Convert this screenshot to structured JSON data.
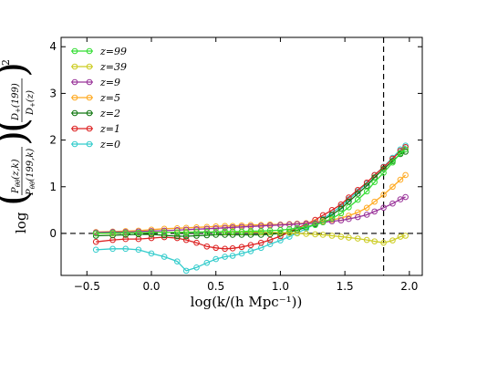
{
  "chart_data": {
    "type": "line",
    "xlabel": "log(k/(h Mpc⁻¹))",
    "ylabel_main": "log",
    "ylabel_frac1_num": "P",
    "ylabel_frac1_num_sub": "θθ",
    "ylabel_frac1_num_args": "(z,k)",
    "ylabel_frac1_den": "P",
    "ylabel_frac1_den_sub": "θθ",
    "ylabel_frac1_den_args": "(199,k)",
    "ylabel_frac2_num": "D",
    "ylabel_frac2_num_sub": "+",
    "ylabel_frac2_num_args": "(199)",
    "ylabel_frac2_den": "D",
    "ylabel_frac2_den_sub": "+",
    "ylabel_frac2_den_args": "(z)",
    "ylabel_exponent": "2",
    "xlim": [
      -0.7,
      2.1
    ],
    "ylim": [
      -0.9,
      4.2
    ],
    "xticks": [
      -0.5,
      0.0,
      0.5,
      1.0,
      1.5,
      2.0
    ],
    "xtick_labels": [
      "−0.5",
      "0.0",
      "0.5",
      "1.0",
      "1.5",
      "2.0"
    ],
    "yticks": [
      0,
      1,
      2,
      3,
      4
    ],
    "ytick_labels": [
      "0",
      "1",
      "2",
      "3",
      "4"
    ],
    "reference_lines": {
      "horizontal_y": 0,
      "vertical_x": 1.8
    },
    "legend_position": "upper-left",
    "x": [
      -0.43,
      -0.3,
      -0.2,
      -0.1,
      0.0,
      0.1,
      0.2,
      0.27,
      0.35,
      0.43,
      0.5,
      0.57,
      0.63,
      0.7,
      0.77,
      0.85,
      0.92,
      1.0,
      1.07,
      1.13,
      1.2,
      1.27,
      1.33,
      1.4,
      1.47,
      1.53,
      1.6,
      1.67,
      1.73,
      1.8,
      1.87,
      1.93,
      1.97
    ],
    "series": [
      {
        "name": "z=99",
        "color": "#33dd33",
        "values": [
          0.0,
          0.01,
          0.01,
          0.01,
          0.02,
          0.02,
          0.02,
          0.02,
          0.03,
          0.03,
          0.03,
          0.04,
          0.04,
          0.04,
          0.05,
          0.05,
          0.06,
          0.07,
          0.09,
          0.11,
          0.14,
          0.18,
          0.24,
          0.32,
          0.43,
          0.56,
          0.72,
          0.9,
          1.1,
          1.3,
          1.52,
          1.72,
          1.8
        ]
      },
      {
        "name": "z=39",
        "color": "#cccc22",
        "values": [
          0.0,
          0.0,
          0.01,
          0.01,
          0.02,
          0.02,
          0.02,
          0.03,
          0.03,
          0.03,
          0.03,
          0.03,
          0.03,
          0.03,
          0.03,
          0.02,
          0.02,
          0.02,
          0.01,
          0.0,
          -0.01,
          -0.02,
          -0.03,
          -0.05,
          -0.07,
          -0.09,
          -0.11,
          -0.14,
          -0.17,
          -0.2,
          -0.15,
          -0.07,
          -0.05
        ]
      },
      {
        "name": "z=9",
        "color": "#993399",
        "values": [
          0.02,
          0.03,
          0.03,
          0.04,
          0.05,
          0.06,
          0.07,
          0.08,
          0.09,
          0.1,
          0.11,
          0.12,
          0.13,
          0.14,
          0.15,
          0.16,
          0.17,
          0.18,
          0.19,
          0.2,
          0.21,
          0.22,
          0.24,
          0.26,
          0.28,
          0.31,
          0.35,
          0.4,
          0.47,
          0.55,
          0.64,
          0.73,
          0.78
        ]
      },
      {
        "name": "z=5",
        "color": "#ffaa22",
        "values": [
          0.03,
          0.04,
          0.05,
          0.06,
          0.08,
          0.1,
          0.11,
          0.12,
          0.13,
          0.14,
          0.15,
          0.16,
          0.16,
          0.17,
          0.18,
          0.18,
          0.19,
          0.19,
          0.2,
          0.21,
          0.22,
          0.24,
          0.26,
          0.29,
          0.33,
          0.38,
          0.45,
          0.55,
          0.68,
          0.83,
          1.0,
          1.15,
          1.25
        ]
      },
      {
        "name": "z=2",
        "color": "#117711",
        "values": [
          -0.05,
          -0.04,
          -0.03,
          -0.02,
          -0.02,
          -0.04,
          -0.06,
          -0.06,
          -0.05,
          -0.04,
          -0.03,
          -0.03,
          -0.03,
          -0.03,
          -0.03,
          -0.03,
          -0.02,
          0.0,
          0.03,
          0.07,
          0.13,
          0.2,
          0.29,
          0.4,
          0.53,
          0.68,
          0.85,
          1.02,
          1.2,
          1.38,
          1.55,
          1.7,
          1.75
        ]
      },
      {
        "name": "z=1",
        "color": "#dd2222",
        "values": [
          -0.18,
          -0.14,
          -0.12,
          -0.12,
          -0.1,
          -0.08,
          -0.1,
          -0.14,
          -0.2,
          -0.28,
          -0.31,
          -0.33,
          -0.32,
          -0.29,
          -0.25,
          -0.2,
          -0.14,
          -0.06,
          0.03,
          0.11,
          0.2,
          0.29,
          0.39,
          0.5,
          0.62,
          0.77,
          0.93,
          1.09,
          1.25,
          1.42,
          1.6,
          1.77,
          1.85
        ]
      },
      {
        "name": "z=0",
        "color": "#33cccc",
        "values": [
          -0.35,
          -0.33,
          -0.33,
          -0.35,
          -0.43,
          -0.5,
          -0.6,
          -0.8,
          -0.73,
          -0.63,
          -0.55,
          -0.5,
          -0.48,
          -0.43,
          -0.38,
          -0.31,
          -0.23,
          -0.15,
          -0.07,
          0.01,
          0.1,
          0.2,
          0.31,
          0.44,
          0.58,
          0.73,
          0.9,
          1.07,
          1.25,
          1.43,
          1.62,
          1.8,
          1.88
        ]
      }
    ]
  }
}
